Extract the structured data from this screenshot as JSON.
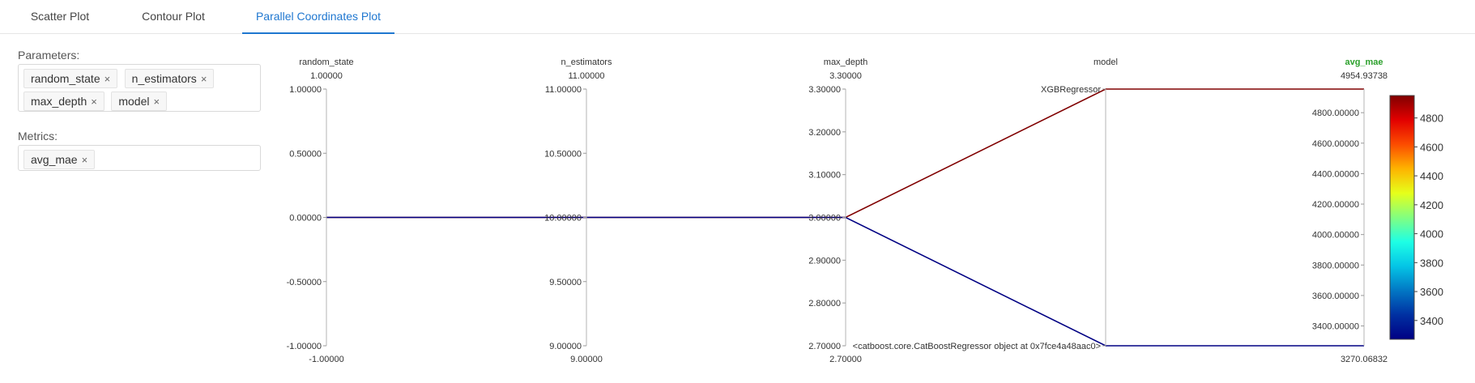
{
  "tabs": [
    {
      "label": "Scatter Plot"
    },
    {
      "label": "Contour Plot"
    },
    {
      "label": "Parallel Coordinates Plot"
    }
  ],
  "active_tab": 2,
  "parameters": {
    "label": "Parameters:",
    "chips": [
      {
        "label": "random_state"
      },
      {
        "label": "n_estimators"
      },
      {
        "label": "max_depth"
      },
      {
        "label": "model"
      }
    ]
  },
  "metrics": {
    "label": "Metrics:",
    "chips": [
      {
        "label": "avg_mae"
      }
    ]
  },
  "chip_close_glyph": "×",
  "colors": {
    "accent": "#1f77d0",
    "metric_title": "#2ca02c",
    "high_line": "#8b0000",
    "low_line": "#0a0a8a"
  },
  "chart_data": {
    "type": "parallel_coordinates",
    "axes": [
      {
        "name": "random_state",
        "kind": "numeric",
        "range": [
          -1.0,
          1.0
        ],
        "top_label": "1.00000",
        "bottom_label": "-1.00000",
        "ticks": [
          {
            "value": 1.0,
            "label": "1.00000"
          },
          {
            "value": 0.5,
            "label": "0.50000"
          },
          {
            "value": 0.0,
            "label": "0.00000"
          },
          {
            "value": -0.5,
            "label": "-0.50000"
          },
          {
            "value": -1.0,
            "label": "-1.00000"
          }
        ]
      },
      {
        "name": "n_estimators",
        "kind": "numeric",
        "range": [
          9.0,
          11.0
        ],
        "top_label": "11.00000",
        "bottom_label": "9.00000",
        "ticks": [
          {
            "value": 11.0,
            "label": "11.00000"
          },
          {
            "value": 10.5,
            "label": "10.50000"
          },
          {
            "value": 10.0,
            "label": "10.00000"
          },
          {
            "value": 9.5,
            "label": "9.50000"
          },
          {
            "value": 9.0,
            "label": "9.00000"
          }
        ]
      },
      {
        "name": "max_depth",
        "kind": "numeric",
        "range": [
          2.7,
          3.3
        ],
        "top_label": "3.30000",
        "bottom_label": "2.70000",
        "ticks": [
          {
            "value": 3.3,
            "label": "3.30000"
          },
          {
            "value": 3.2,
            "label": "3.20000"
          },
          {
            "value": 3.1,
            "label": "3.10000"
          },
          {
            "value": 3.0,
            "label": "3.00000"
          },
          {
            "value": 2.9,
            "label": "2.90000"
          },
          {
            "value": 2.8,
            "label": "2.80000"
          },
          {
            "value": 2.7,
            "label": "2.70000"
          }
        ]
      },
      {
        "name": "model",
        "kind": "categorical",
        "categories": [
          "<catboost.core.CatBoostRegressor object at 0x7fce4a48aac0>",
          "XGBRegressor"
        ],
        "top_label": "",
        "bottom_label": "",
        "ticks": [
          {
            "value": 1,
            "label": "XGBRegressor"
          },
          {
            "value": 0,
            "label": "<catboost.core.CatBoostRegressor object at 0x7fce4a48aac0>"
          }
        ]
      },
      {
        "name": "avg_mae",
        "kind": "metric",
        "range": [
          3270.06832,
          4954.93738
        ],
        "top_label": "4954.93738",
        "bottom_label": "3270.06832",
        "ticks": [
          {
            "value": 4800,
            "label": "4800.00000"
          },
          {
            "value": 4600,
            "label": "4600.00000"
          },
          {
            "value": 4400,
            "label": "4400.00000"
          },
          {
            "value": 4200,
            "label": "4200.00000"
          },
          {
            "value": 4000,
            "label": "4000.00000"
          },
          {
            "value": 3800,
            "label": "3800.00000"
          },
          {
            "value": 3600,
            "label": "3600.00000"
          },
          {
            "value": 3400,
            "label": "3400.00000"
          }
        ]
      }
    ],
    "lines": [
      {
        "values": [
          0,
          10,
          3.0,
          1,
          4954.93738
        ]
      },
      {
        "values": [
          0,
          10,
          3.0,
          0,
          3270.06832
        ]
      }
    ],
    "colorscale": {
      "name": "jet",
      "range": [
        3270.06832,
        4954.93738
      ],
      "ticks": [
        {
          "value": 4800,
          "label": "4800"
        },
        {
          "value": 4600,
          "label": "4600"
        },
        {
          "value": 4400,
          "label": "4400"
        },
        {
          "value": 4200,
          "label": "4200"
        },
        {
          "value": 4000,
          "label": "4000"
        },
        {
          "value": 3800,
          "label": "3800"
        },
        {
          "value": 3600,
          "label": "3600"
        },
        {
          "value": 3400,
          "label": "3400"
        }
      ]
    }
  }
}
